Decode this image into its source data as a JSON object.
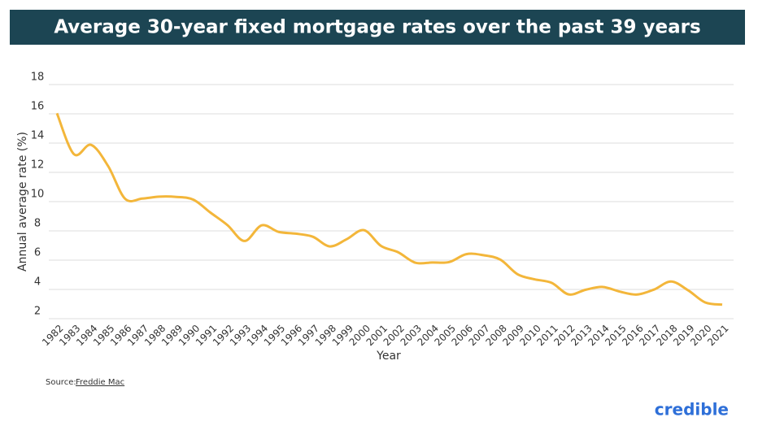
{
  "chart_data": {
    "type": "line",
    "title": "Average 30-year fixed mortgage rates over the past 39 years",
    "x_label": "Year",
    "y_label": "Annual average rate (%)",
    "source_label": "Source:",
    "source_link": "Freddie Mac",
    "brand": "credible",
    "categories": [
      "1982",
      "1983",
      "1984",
      "1985",
      "1986",
      "1987",
      "1988",
      "1989",
      "1990",
      "1991",
      "1992",
      "1993",
      "1994",
      "1995",
      "1996",
      "1997",
      "1998",
      "1999",
      "2000",
      "2001",
      "2002",
      "2003",
      "2004",
      "2005",
      "2006",
      "2007",
      "2008",
      "2009",
      "2010",
      "2011",
      "2012",
      "2013",
      "2014",
      "2015",
      "2016",
      "2017",
      "2018",
      "2019",
      "2020",
      "2021"
    ],
    "values": [
      16.04,
      13.24,
      13.88,
      12.43,
      10.19,
      10.21,
      10.34,
      10.32,
      10.13,
      9.25,
      8.39,
      7.31,
      8.38,
      7.93,
      7.81,
      7.6,
      6.94,
      7.44,
      8.05,
      6.97,
      6.54,
      5.83,
      5.84,
      5.87,
      6.41,
      6.34,
      6.03,
      5.04,
      4.69,
      4.45,
      3.66,
      3.98,
      4.17,
      3.85,
      3.65,
      3.99,
      4.54,
      3.94,
      3.11,
      2.96
    ],
    "color": "#f3b63a",
    "ylim": [
      2,
      18
    ],
    "yticks": [
      2,
      4,
      6,
      8,
      10,
      12,
      14,
      16,
      18
    ],
    "grid": true
  }
}
